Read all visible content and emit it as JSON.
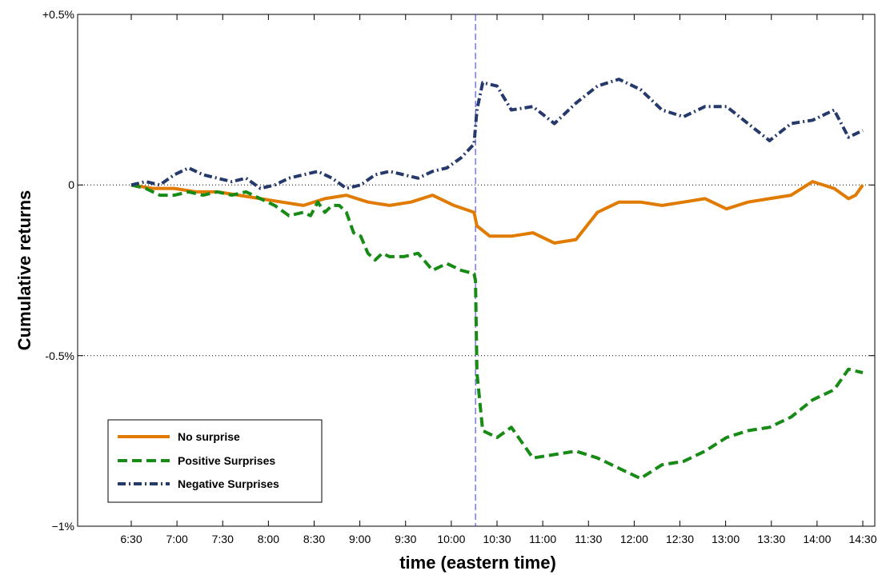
{
  "chart_data": {
    "type": "line",
    "xlabel": "time (eastern time)",
    "ylabel": "Cumulative returns",
    "x_ticks": [
      "6:30",
      "7:00",
      "7:30",
      "8:00",
      "8:30",
      "9:00",
      "9:30",
      "10:00",
      "10:30",
      "11:00",
      "11:30",
      "12:00",
      "12:30",
      "13:00",
      "13:30",
      "14:00",
      "14:30"
    ],
    "y_ticks": [
      {
        "value": 0.5,
        "label": "+0.5%"
      },
      {
        "value": 0,
        "label": "0"
      },
      {
        "value": -0.5,
        "label": "-0.5%"
      },
      {
        "value": -1,
        "label": "−1%"
      }
    ],
    "xlim": [
      0,
      510
    ],
    "ylim": [
      -1,
      0.5
    ],
    "event_marker_minute": 240,
    "grid": "dotted lines at 0 and -0.5%",
    "legend_position": "bottom-left",
    "x_unit": "minutes after 6:30",
    "series": [
      {
        "name": "No surprise",
        "color": "#E07B00",
        "style": "solid",
        "x": [
          0,
          15,
          30,
          45,
          60,
          75,
          90,
          105,
          120,
          135,
          150,
          165,
          180,
          195,
          210,
          225,
          239,
          241,
          250,
          265,
          280,
          295,
          310,
          325,
          340,
          355,
          370,
          385,
          400,
          415,
          430,
          445,
          460,
          475,
          490,
          500,
          505,
          510
        ],
        "y": [
          0,
          -0.01,
          -0.01,
          -0.02,
          -0.02,
          -0.03,
          -0.04,
          -0.05,
          -0.06,
          -0.04,
          -0.03,
          -0.05,
          -0.06,
          -0.05,
          -0.03,
          -0.06,
          -0.08,
          -0.12,
          -0.15,
          -0.15,
          -0.14,
          -0.17,
          -0.16,
          -0.08,
          -0.05,
          -0.05,
          -0.06,
          -0.05,
          -0.04,
          -0.07,
          -0.05,
          -0.04,
          -0.03,
          0.01,
          -0.01,
          -0.04,
          -0.03,
          0.0
        ]
      },
      {
        "name": "Positive Surprises",
        "color": "#188A16",
        "style": "dashed",
        "x": [
          0,
          10,
          20,
          30,
          40,
          50,
          60,
          70,
          80,
          90,
          100,
          110,
          120,
          125,
          130,
          135,
          140,
          145,
          150,
          155,
          160,
          165,
          170,
          175,
          180,
          190,
          200,
          210,
          220,
          230,
          239,
          240,
          241,
          245,
          255,
          265,
          280,
          295,
          310,
          325,
          340,
          355,
          370,
          385,
          400,
          415,
          430,
          445,
          460,
          475,
          490,
          500,
          510
        ],
        "y": [
          0,
          -0.01,
          -0.03,
          -0.03,
          -0.02,
          -0.03,
          -0.02,
          -0.03,
          -0.02,
          -0.04,
          -0.06,
          -0.09,
          -0.08,
          -0.09,
          -0.05,
          -0.08,
          -0.06,
          -0.06,
          -0.08,
          -0.14,
          -0.15,
          -0.2,
          -0.22,
          -0.2,
          -0.21,
          -0.21,
          -0.2,
          -0.25,
          -0.23,
          -0.25,
          -0.26,
          -0.28,
          -0.55,
          -0.72,
          -0.74,
          -0.71,
          -0.8,
          -0.79,
          -0.78,
          -0.8,
          -0.83,
          -0.86,
          -0.82,
          -0.81,
          -0.78,
          -0.74,
          -0.72,
          -0.71,
          -0.68,
          -0.63,
          -0.6,
          -0.54,
          -0.55
        ]
      },
      {
        "name": "Negative Surprises",
        "color": "#253A6B",
        "style": "dash-dot",
        "x": [
          0,
          10,
          20,
          30,
          40,
          50,
          60,
          70,
          80,
          90,
          100,
          110,
          120,
          130,
          140,
          150,
          160,
          170,
          180,
          190,
          200,
          210,
          220,
          230,
          239,
          241,
          245,
          255,
          265,
          280,
          295,
          310,
          325,
          340,
          355,
          370,
          385,
          400,
          415,
          430,
          445,
          460,
          475,
          490,
          500,
          510
        ],
        "y": [
          0,
          0.01,
          0.0,
          0.03,
          0.05,
          0.03,
          0.02,
          0.01,
          0.02,
          -0.01,
          0.0,
          0.02,
          0.03,
          0.04,
          0.02,
          -0.01,
          0.0,
          0.03,
          0.04,
          0.03,
          0.02,
          0.04,
          0.05,
          0.08,
          0.12,
          0.22,
          0.3,
          0.29,
          0.22,
          0.23,
          0.18,
          0.24,
          0.29,
          0.31,
          0.28,
          0.22,
          0.2,
          0.23,
          0.23,
          0.18,
          0.13,
          0.18,
          0.19,
          0.22,
          0.14,
          0.16
        ]
      }
    ]
  }
}
